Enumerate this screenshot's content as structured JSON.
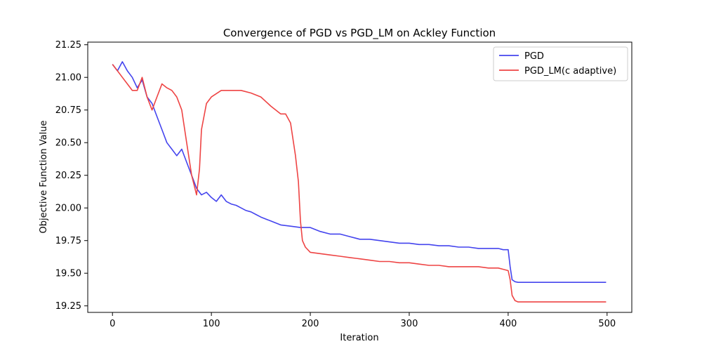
{
  "chart_data": {
    "type": "line",
    "title": "Convergence of PGD vs PGD_LM on Ackley Function",
    "xlabel": "Iteration",
    "ylabel": "Objective Function Value",
    "xlim": [
      -25,
      525
    ],
    "ylim": [
      19.2,
      21.27
    ],
    "xticks": [
      0,
      100,
      200,
      300,
      400,
      500
    ],
    "yticks": [
      19.25,
      19.5,
      19.75,
      20.0,
      20.25,
      20.5,
      20.75,
      21.0,
      21.25
    ],
    "ytick_labels": [
      "19.25",
      "19.50",
      "19.75",
      "20.00",
      "20.25",
      "20.50",
      "20.75",
      "21.00",
      "21.25"
    ],
    "grid": false,
    "legend_position": "top-right",
    "series": [
      {
        "name": "PGD",
        "color": "#4444ee",
        "x": [
          0,
          5,
          10,
          15,
          20,
          25,
          30,
          35,
          40,
          45,
          50,
          55,
          60,
          65,
          70,
          75,
          80,
          85,
          90,
          95,
          100,
          105,
          110,
          115,
          120,
          125,
          130,
          135,
          140,
          145,
          150,
          160,
          170,
          180,
          190,
          200,
          210,
          220,
          230,
          240,
          250,
          260,
          270,
          280,
          290,
          300,
          310,
          320,
          330,
          340,
          350,
          360,
          370,
          380,
          390,
          395,
          400,
          402,
          404,
          407,
          410,
          420,
          450,
          480,
          499
        ],
        "y": [
          21.1,
          21.05,
          21.12,
          21.05,
          21.0,
          20.92,
          20.98,
          20.85,
          20.8,
          20.7,
          20.6,
          20.5,
          20.45,
          20.4,
          20.45,
          20.35,
          20.25,
          20.15,
          20.1,
          20.12,
          20.08,
          20.05,
          20.1,
          20.05,
          20.03,
          20.02,
          20.0,
          19.98,
          19.97,
          19.95,
          19.93,
          19.9,
          19.87,
          19.86,
          19.85,
          19.85,
          19.82,
          19.8,
          19.8,
          19.78,
          19.76,
          19.76,
          19.75,
          19.74,
          19.73,
          19.73,
          19.72,
          19.72,
          19.71,
          19.71,
          19.7,
          19.7,
          19.69,
          19.69,
          19.69,
          19.68,
          19.68,
          19.55,
          19.45,
          19.435,
          19.43,
          19.43,
          19.43,
          19.43,
          19.43
        ]
      },
      {
        "name": "PGD_LM(c adaptive)",
        "color": "#ee4444",
        "x": [
          0,
          5,
          10,
          15,
          20,
          25,
          30,
          35,
          40,
          45,
          50,
          55,
          60,
          65,
          70,
          75,
          80,
          85,
          88,
          90,
          95,
          100,
          110,
          120,
          130,
          140,
          150,
          160,
          170,
          175,
          180,
          185,
          188,
          190,
          192,
          195,
          200,
          210,
          220,
          230,
          240,
          250,
          260,
          270,
          280,
          290,
          300,
          310,
          320,
          330,
          340,
          350,
          360,
          370,
          380,
          390,
          395,
          400,
          402,
          404,
          407,
          410,
          420,
          450,
          480,
          499
        ],
        "y": [
          21.1,
          21.05,
          21.0,
          20.95,
          20.9,
          20.9,
          21.0,
          20.85,
          20.75,
          20.85,
          20.95,
          20.92,
          20.9,
          20.85,
          20.75,
          20.5,
          20.25,
          20.1,
          20.3,
          20.6,
          20.8,
          20.85,
          20.9,
          20.9,
          20.9,
          20.88,
          20.85,
          20.78,
          20.72,
          20.72,
          20.65,
          20.4,
          20.2,
          19.9,
          19.75,
          19.7,
          19.66,
          19.65,
          19.64,
          19.63,
          19.62,
          19.61,
          19.6,
          19.59,
          19.59,
          19.58,
          19.58,
          19.57,
          19.56,
          19.56,
          19.55,
          19.55,
          19.55,
          19.55,
          19.54,
          19.54,
          19.53,
          19.52,
          19.45,
          19.33,
          19.29,
          19.28,
          19.28,
          19.28,
          19.28,
          19.28
        ]
      }
    ]
  }
}
